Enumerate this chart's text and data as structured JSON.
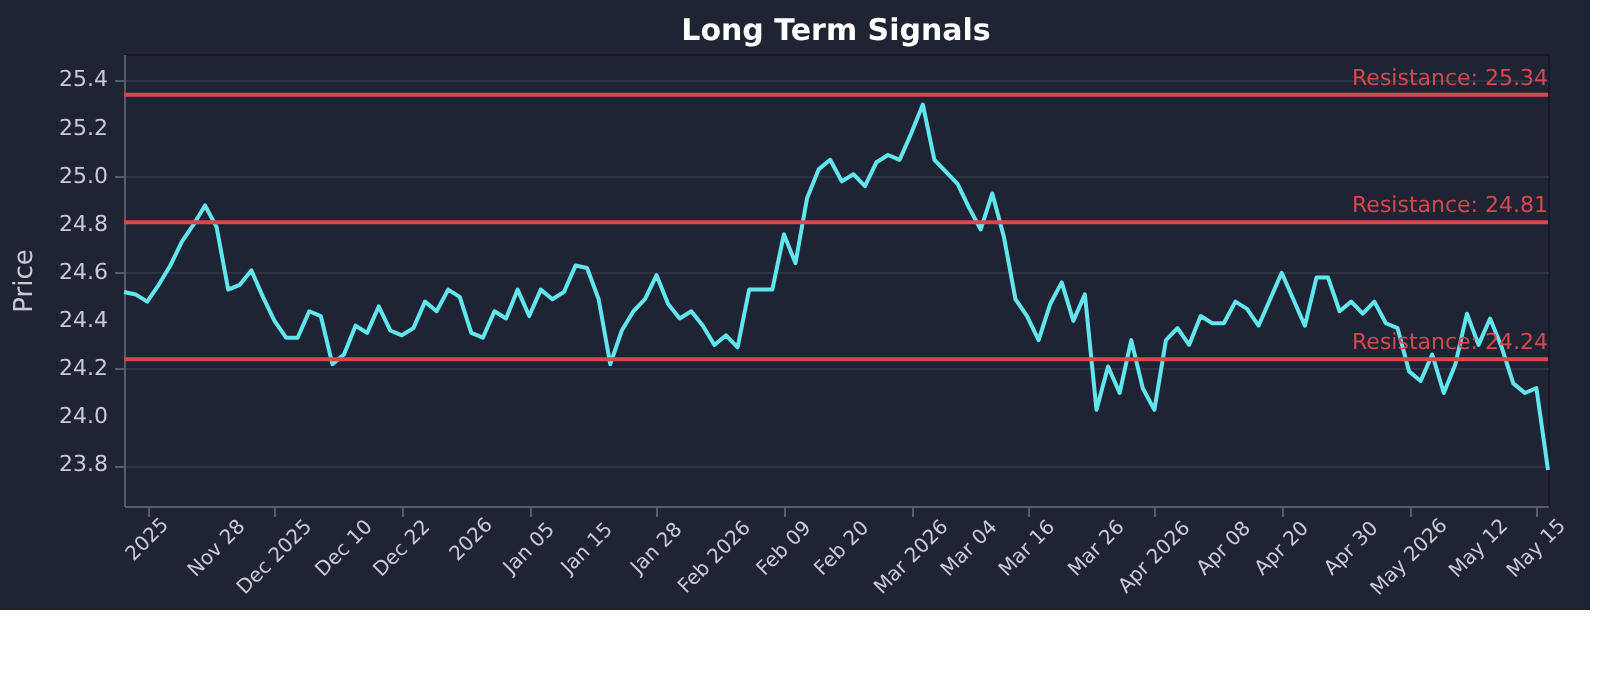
{
  "chart_data": {
    "type": "line",
    "title": "Long Term Signals",
    "ylabel": "Price",
    "categories": [
      null,
      null,
      "2025",
      null,
      null,
      null,
      null,
      null,
      "Nov 28",
      null,
      null,
      null,
      null,
      "Dec 2025",
      null,
      null,
      null,
      null,
      null,
      "Dec 10",
      null,
      null,
      null,
      null,
      "Dec 22",
      null,
      null,
      null,
      null,
      null,
      "2026",
      null,
      null,
      null,
      null,
      "Jan 05",
      null,
      null,
      null,
      null,
      "Jan 15",
      null,
      null,
      null,
      null,
      null,
      "Jan 28",
      null,
      null,
      null,
      null,
      "Feb 2026",
      null,
      null,
      null,
      null,
      null,
      "Feb 09",
      null,
      null,
      null,
      null,
      "Feb 20",
      null,
      null,
      null,
      null,
      null,
      "Mar 2026",
      null,
      null,
      null,
      null,
      "Mar 04",
      null,
      null,
      null,
      null,
      "Mar 16",
      null,
      null,
      null,
      null,
      null,
      "Mar 26",
      null,
      null,
      null,
      null,
      "Apr 2026",
      null,
      null,
      null,
      null,
      null,
      "Apr 08",
      null,
      null,
      null,
      null,
      "Apr 20",
      null,
      null,
      null,
      null,
      null,
      "Apr 30",
      null,
      null,
      null,
      null,
      "May 2026",
      null,
      null,
      null,
      null,
      null,
      "May 12",
      null,
      null,
      null,
      null,
      "May 15",
      null
    ],
    "series": [
      {
        "color": "#62e6ee",
        "values": [
          24.52,
          24.51,
          24.48,
          24.55,
          24.63,
          24.73,
          24.8,
          24.88,
          24.79,
          24.53,
          24.55,
          24.61,
          24.5,
          24.4,
          24.33,
          24.33,
          24.44,
          24.42,
          24.22,
          24.26,
          24.38,
          24.35,
          24.46,
          24.36,
          24.34,
          24.37,
          24.48,
          24.44,
          24.53,
          24.5,
          24.35,
          24.33,
          24.44,
          24.41,
          24.53,
          24.42,
          24.53,
          24.49,
          24.52,
          24.63,
          24.62,
          24.49,
          24.22,
          24.36,
          24.44,
          24.49,
          24.59,
          24.47,
          24.41,
          24.44,
          24.38,
          24.3,
          24.34,
          24.29,
          24.53,
          24.53,
          24.53,
          24.76,
          24.64,
          24.91,
          25.03,
          25.07,
          24.98,
          25.01,
          24.96,
          25.06,
          25.09,
          25.07,
          25.18,
          25.3,
          25.07,
          25.02,
          24.97,
          24.87,
          24.78,
          24.93,
          24.75,
          24.49,
          24.42,
          24.32,
          24.47,
          24.56,
          24.4,
          24.51,
          24.03,
          24.21,
          24.1,
          24.32,
          24.12,
          24.03,
          24.32,
          24.37,
          24.3,
          24.42,
          24.39,
          24.39,
          24.48,
          24.45,
          24.38,
          24.49,
          24.6,
          24.49,
          24.38,
          24.58,
          24.58,
          24.44,
          24.48,
          24.43,
          24.48,
          24.39,
          24.37,
          24.19,
          24.15,
          24.26,
          24.1,
          24.22,
          24.43,
          24.3,
          24.41,
          24.29,
          24.14,
          24.1,
          24.12,
          23.78
        ]
      }
    ],
    "ylim": [
      23.63,
      25.51
    ],
    "yticks": [
      23.8,
      {
        "value": 24,
        "label": "24.0"
      },
      24.2,
      24.4,
      24.6,
      24.8,
      {
        "value": 25,
        "label": "25.0"
      },
      25.2,
      25.4
    ],
    "ref_lines": [
      {
        "axis": "y",
        "value": 25.34,
        "label": "Resistance: 25.34",
        "color": "#d9474c"
      },
      {
        "axis": "y",
        "value": 24.81,
        "label": "Resistance: 24.81",
        "color": "#d9474c"
      },
      {
        "axis": "y",
        "value": 24.24,
        "label": "Resistance: 24.24",
        "color": "#d9474c"
      }
    ],
    "grid": "y",
    "legend": false,
    "marker": "none",
    "line_style": "solid"
  }
}
